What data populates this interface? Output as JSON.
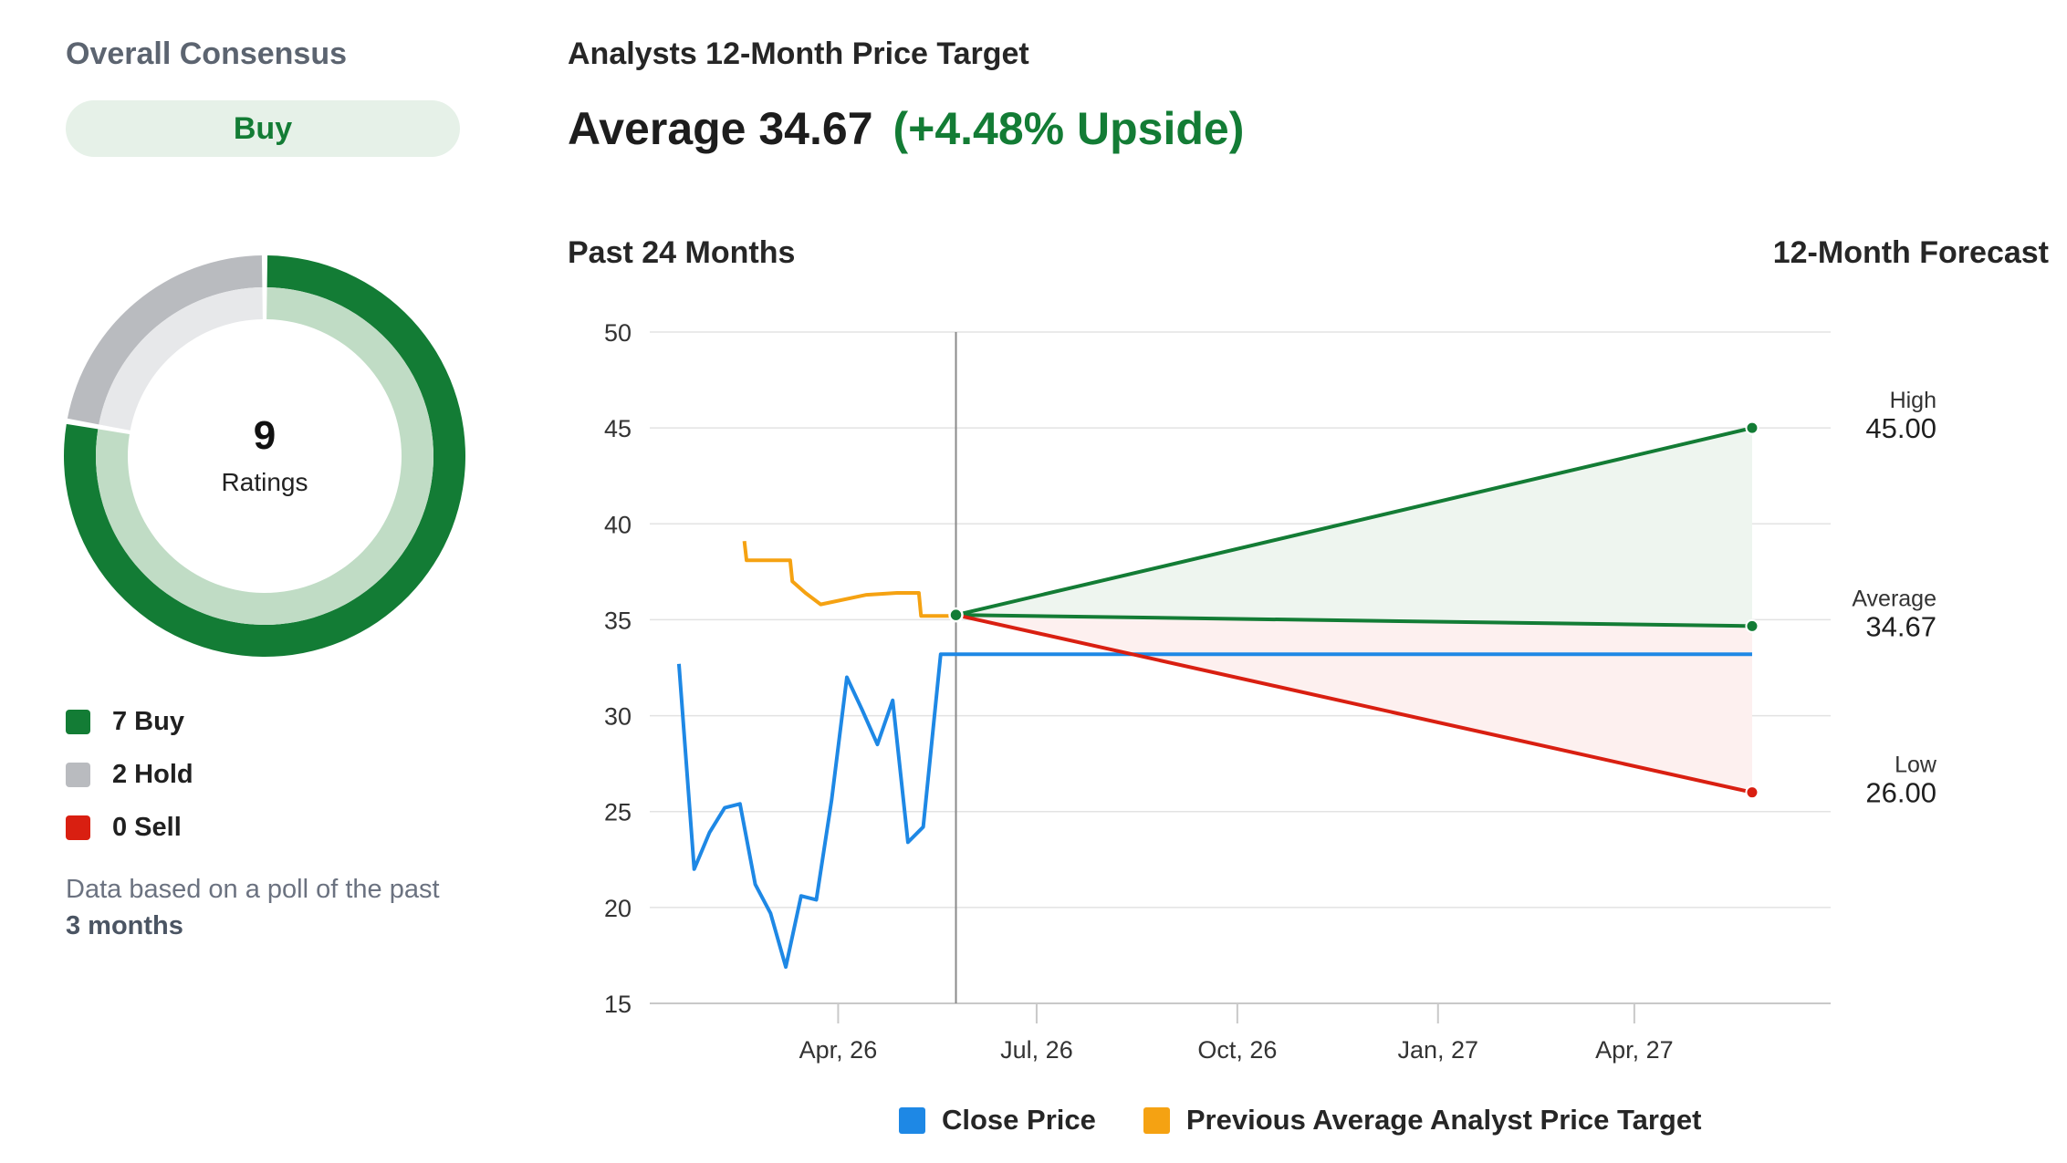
{
  "consensus": {
    "heading": "Overall Consensus",
    "rating": "Buy",
    "total_ratings": "9",
    "ratings_label": "Ratings",
    "breakdown": [
      {
        "label": "7 Buy",
        "count": 7,
        "color": "#137c35",
        "light_color": "#c0dcc5"
      },
      {
        "label": "2 Hold",
        "count": 2,
        "color": "#b9bbbf",
        "light_color": "#e7e8ea"
      },
      {
        "label": "0 Sell",
        "count": 0,
        "color": "#d91f11",
        "light_color": "#f5c6c2"
      }
    ],
    "note_prefix": "Data based on a poll of the past ",
    "note_bold": "3 months"
  },
  "target": {
    "heading": "Analysts 12-Month Price Target",
    "average_text": "Average 34.67",
    "upside_text": "(+4.48% Upside)",
    "past_label": "Past 24 Months",
    "forecast_label": "12-Month Forecast"
  },
  "chart_data": {
    "type": "line",
    "ylim": [
      15,
      50
    ],
    "yticks": [
      50,
      45,
      40,
      35,
      30,
      25,
      20,
      15
    ],
    "xlim": [
      "2026-01-13",
      "2027-06-30"
    ],
    "xticks": [
      {
        "label": "Apr, 26",
        "date": "2026-04-01"
      },
      {
        "label": "Jul, 26",
        "date": "2026-07-01"
      },
      {
        "label": "Oct, 26",
        "date": "2026-10-01"
      },
      {
        "label": "Jan, 27",
        "date": "2027-01-01"
      },
      {
        "label": "Apr, 27",
        "date": "2027-04-01"
      }
    ],
    "today": "2026-05-25",
    "forecast_end": "2027-05-25",
    "series": [
      {
        "name": "Close Price",
        "color": "#1e88e5",
        "points": [
          [
            "2026-01-18",
            32.7
          ],
          [
            "2026-01-25",
            22.0
          ],
          [
            "2026-02-01",
            23.9
          ],
          [
            "2026-02-08",
            25.2
          ],
          [
            "2026-02-15",
            25.4
          ],
          [
            "2026-02-22",
            21.2
          ],
          [
            "2026-03-01",
            19.7
          ],
          [
            "2026-03-08",
            16.9
          ],
          [
            "2026-03-15",
            20.6
          ],
          [
            "2026-03-22",
            20.4
          ],
          [
            "2026-03-29",
            25.6
          ],
          [
            "2026-04-05",
            32.0
          ],
          [
            "2026-04-12",
            30.3
          ],
          [
            "2026-04-19",
            28.5
          ],
          [
            "2026-04-26",
            30.8
          ],
          [
            "2026-05-03",
            23.4
          ],
          [
            "2026-05-10",
            24.2
          ],
          [
            "2026-05-18",
            33.2
          ],
          [
            "2026-05-25",
            33.2
          ],
          [
            "2027-05-25",
            33.2
          ]
        ]
      },
      {
        "name": "Previous Average Analyst Price Target",
        "color": "#f5a212",
        "points": [
          [
            "2026-02-17",
            39.1
          ],
          [
            "2026-02-18",
            38.1
          ],
          [
            "2026-03-10",
            38.1
          ],
          [
            "2026-03-11",
            37.0
          ],
          [
            "2026-03-17",
            36.4
          ],
          [
            "2026-03-24",
            35.8
          ],
          [
            "2026-04-14",
            36.3
          ],
          [
            "2026-04-28",
            36.4
          ],
          [
            "2026-05-08",
            36.4
          ],
          [
            "2026-05-09",
            35.2
          ],
          [
            "2026-05-24",
            35.2
          ]
        ]
      }
    ],
    "forecast": {
      "start_value": 35.25,
      "high": {
        "label": "High",
        "value_text": "45.00",
        "value": 45.0,
        "color": "#137c35",
        "fill": "#eef5ef"
      },
      "average": {
        "label": "Average",
        "value_text": "34.67",
        "value": 34.67,
        "color": "#137c35"
      },
      "low": {
        "label": "Low",
        "value_text": "26.00",
        "value": 26.0,
        "color": "#d91f11",
        "fill": "#fdf0ef"
      }
    }
  },
  "chart_legend": [
    {
      "label": "Close Price",
      "color": "#1e88e5"
    },
    {
      "label": "Previous Average Analyst Price Target",
      "color": "#f5a212"
    }
  ]
}
